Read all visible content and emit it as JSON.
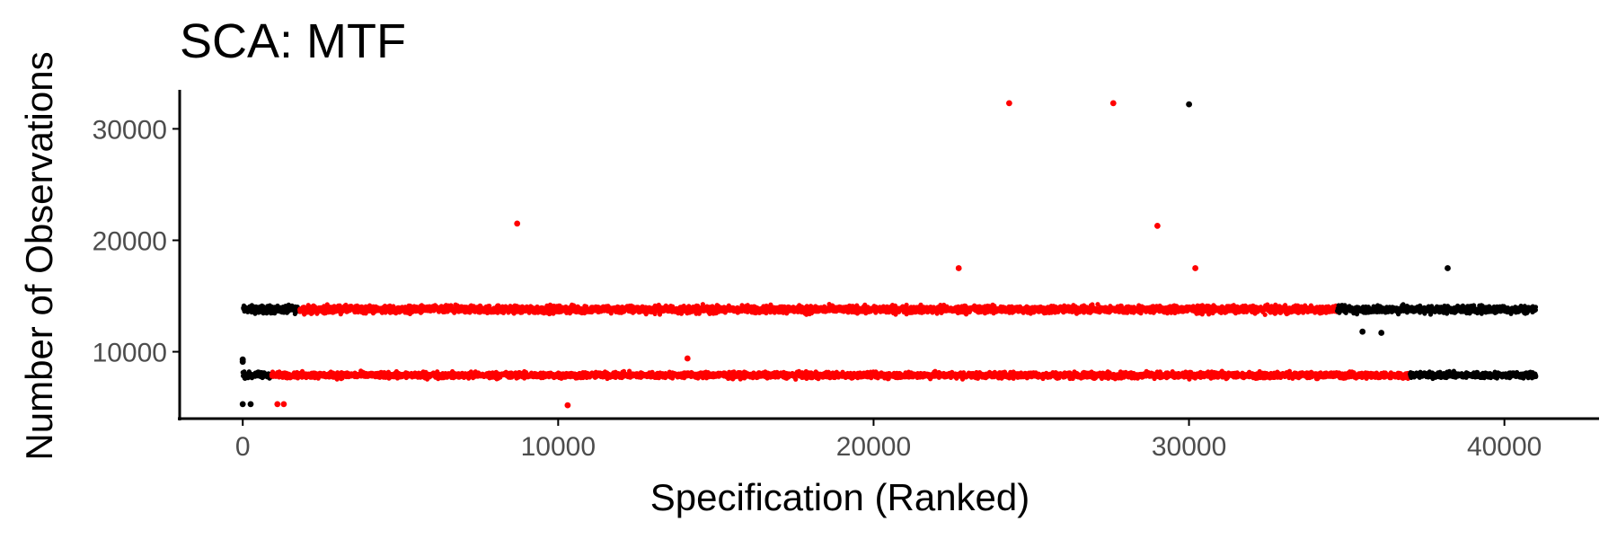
{
  "chart_data": {
    "type": "scatter",
    "title": "SCA: MTF",
    "xlabel": "Specification (Ranked)",
    "ylabel": "Number of Observations",
    "xlim": [
      -2000,
      43000
    ],
    "ylim": [
      4000,
      33500
    ],
    "x_ticks": [
      "0",
      "10000",
      "20000",
      "30000",
      "40000"
    ],
    "y_ticks": [
      "10000",
      "20000",
      "30000"
    ],
    "grid": false,
    "legend": "none",
    "colors": {
      "significant": "#ff0000",
      "not_significant": "#000000"
    },
    "bands": [
      {
        "level": 13800,
        "spread": 500,
        "x_start": 0,
        "x_end": 41000,
        "segments": [
          {
            "from": 0,
            "to": 1800,
            "color": "#000000"
          },
          {
            "from": 1800,
            "to": 34700,
            "color": "#ff0000"
          },
          {
            "from": 34700,
            "to": 41000,
            "color": "#000000"
          }
        ]
      },
      {
        "level": 7900,
        "spread": 400,
        "x_start": 0,
        "x_end": 41000,
        "segments": [
          {
            "from": 0,
            "to": 900,
            "color": "#000000"
          },
          {
            "from": 900,
            "to": 37000,
            "color": "#ff0000"
          },
          {
            "from": 37000,
            "to": 41000,
            "color": "#000000"
          }
        ]
      }
    ],
    "series": [
      {
        "color": "#ff0000",
        "x": [
          24300,
          27600,
          8700,
          29000,
          22700,
          30200,
          14100,
          1100,
          1300,
          10300
        ],
        "y": [
          32300,
          32300,
          21500,
          21300,
          17500,
          17500,
          9400,
          5300,
          5300,
          5200
        ]
      },
      {
        "color": "#000000",
        "x": [
          30000,
          38200,
          35500,
          36100,
          0,
          0,
          0,
          250
        ],
        "y": [
          32200,
          17500,
          11800,
          11700,
          9300,
          9100,
          5300,
          5300
        ]
      }
    ]
  }
}
